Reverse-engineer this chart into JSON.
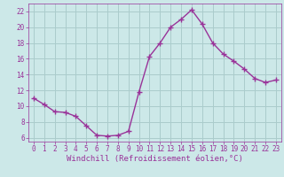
{
  "x": [
    0,
    1,
    2,
    3,
    4,
    5,
    6,
    7,
    8,
    9,
    10,
    11,
    12,
    13,
    14,
    15,
    16,
    17,
    18,
    19,
    20,
    21,
    22,
    23
  ],
  "y": [
    11.0,
    10.2,
    9.3,
    9.2,
    8.7,
    7.5,
    6.3,
    6.2,
    6.3,
    6.8,
    11.8,
    16.3,
    18.0,
    20.0,
    21.0,
    22.2,
    20.4,
    18.0,
    16.6,
    15.7,
    14.7,
    13.5,
    13.0,
    13.3
  ],
  "line_color": "#993399",
  "marker": "+",
  "markersize": 4,
  "linewidth": 1.0,
  "bg_color": "#cce8e8",
  "grid_color": "#aacccc",
  "xlabel": "Windchill (Refroidissement éolien,°C)",
  "xlim": [
    -0.5,
    23.5
  ],
  "ylim": [
    5.5,
    23.0
  ],
  "yticks": [
    6,
    8,
    10,
    12,
    14,
    16,
    18,
    20,
    22
  ],
  "xticks": [
    0,
    1,
    2,
    3,
    4,
    5,
    6,
    7,
    8,
    9,
    10,
    11,
    12,
    13,
    14,
    15,
    16,
    17,
    18,
    19,
    20,
    21,
    22,
    23
  ],
  "tick_color": "#993399",
  "axis_label_color": "#993399",
  "tick_fontsize": 5.5,
  "xlabel_fontsize": 6.5
}
